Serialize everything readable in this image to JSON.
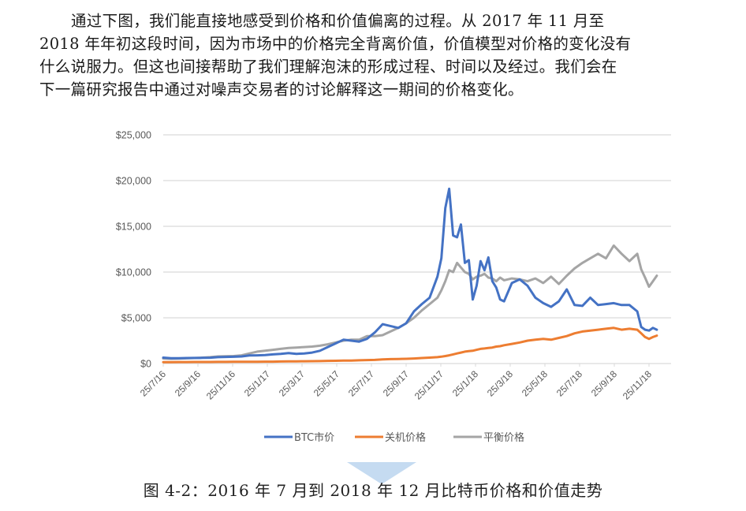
{
  "paragraph": {
    "lines": [
      "通过下图，我们能直接地感受到价格和价值偏离的过程。从 2017 年 11 月至",
      "2018 年年初这段时间，因为市场中的价格完全背离价值，价值模型对价格的变化没有",
      "什么说服力。但这也间接帮助了我们理解泡沫的形成过程、时间以及经过。我们会在",
      "下一篇研究报告中通过对噪声交易者的讨论解释这一期间的价格变化。"
    ]
  },
  "caption": "图 4-2：2016 年 7 月到 2018 年 12 月比特币价格和价值走势",
  "colors": {
    "btc": "#4472C4",
    "shutdown": "#ED7D31",
    "equilibrium": "#A5A5A5",
    "grid": "#D9D9D9",
    "axis_text": "#595959"
  },
  "chart_data": {
    "type": "line",
    "title": "",
    "xlabel": "",
    "ylabel": "",
    "ylim": [
      0,
      25000
    ],
    "yticks": [
      0,
      5000,
      10000,
      15000,
      20000,
      25000
    ],
    "ytick_labels": [
      "$0",
      "$5,000",
      "$10,000",
      "$15,000",
      "$20,000",
      "$25,000"
    ],
    "xtick_labels": [
      "25/7/16",
      "25/9/16",
      "25/11/16",
      "25/1/17",
      "25/3/17",
      "25/5/17",
      "25/7/17",
      "25/9/17",
      "25/11/17",
      "25/1/18",
      "25/3/18",
      "25/5/18",
      "25/7/18",
      "25/9/18",
      "25/11/18"
    ],
    "grid": true,
    "legend_position": "bottom",
    "x": [
      "2016-07-25",
      "2016-08-08",
      "2016-08-22",
      "2016-09-05",
      "2016-09-19",
      "2016-10-03",
      "2016-10-17",
      "2016-10-31",
      "2016-11-14",
      "2016-11-28",
      "2016-12-12",
      "2016-12-26",
      "2017-01-09",
      "2017-01-23",
      "2017-02-06",
      "2017-02-20",
      "2017-03-06",
      "2017-03-20",
      "2017-04-03",
      "2017-04-17",
      "2017-05-01",
      "2017-05-15",
      "2017-05-29",
      "2017-06-12",
      "2017-06-26",
      "2017-07-10",
      "2017-07-24",
      "2017-08-07",
      "2017-08-21",
      "2017-09-04",
      "2017-09-18",
      "2017-10-02",
      "2017-10-16",
      "2017-10-30",
      "2017-11-13",
      "2017-11-27",
      "2017-12-04",
      "2017-12-11",
      "2017-12-18",
      "2017-12-25",
      "2018-01-01",
      "2018-01-08",
      "2018-01-15",
      "2018-01-22",
      "2018-01-29",
      "2018-02-05",
      "2018-02-12",
      "2018-02-19",
      "2018-02-26",
      "2018-03-05",
      "2018-03-12",
      "2018-03-19",
      "2018-03-26",
      "2018-04-09",
      "2018-04-23",
      "2018-05-07",
      "2018-05-21",
      "2018-06-04",
      "2018-06-18",
      "2018-07-02",
      "2018-07-16",
      "2018-07-30",
      "2018-08-13",
      "2018-08-27",
      "2018-09-10",
      "2018-09-24",
      "2018-10-08",
      "2018-10-22",
      "2018-11-05",
      "2018-11-19",
      "2018-11-26",
      "2018-12-03",
      "2018-12-10",
      "2018-12-17",
      "2018-12-24"
    ],
    "series": [
      {
        "name": "BTC市价",
        "values": [
          650,
          590,
          580,
          600,
          610,
          620,
          640,
          700,
          720,
          740,
          780,
          880,
          900,
          920,
          1000,
          1050,
          1150,
          1050,
          1100,
          1200,
          1400,
          1800,
          2200,
          2600,
          2500,
          2400,
          2700,
          3400,
          4300,
          4100,
          3900,
          4400,
          5700,
          6500,
          7200,
          9500,
          11500,
          17000,
          19100,
          14000,
          13800,
          15200,
          11000,
          11300,
          7000,
          8500,
          11200,
          10200,
          11600,
          9000,
          8300,
          7000,
          6800,
          8800,
          9200,
          8500,
          7200,
          6600,
          6200,
          6800,
          8100,
          6400,
          6300,
          7200,
          6400,
          6500,
          6600,
          6400,
          6400,
          5700,
          4000,
          3700,
          3600,
          3900,
          3700
        ]
      },
      {
        "name": "关机价格",
        "values": [
          150,
          150,
          160,
          160,
          170,
          170,
          170,
          180,
          180,
          190,
          190,
          200,
          200,
          210,
          210,
          220,
          230,
          240,
          250,
          260,
          270,
          290,
          300,
          320,
          330,
          350,
          380,
          400,
          450,
          480,
          500,
          520,
          550,
          600,
          650,
          700,
          750,
          820,
          900,
          1000,
          1100,
          1200,
          1300,
          1350,
          1400,
          1500,
          1600,
          1650,
          1700,
          1750,
          1850,
          1900,
          2000,
          2150,
          2300,
          2500,
          2600,
          2700,
          2600,
          2800,
          3000,
          3300,
          3500,
          3600,
          3700,
          3800,
          3900,
          3700,
          3800,
          3700,
          3300,
          2900,
          2700,
          2900,
          3050
        ]
      },
      {
        "name": "平衡价格",
        "values": [
          550,
          520,
          540,
          570,
          600,
          650,
          700,
          780,
          800,
          820,
          900,
          1100,
          1300,
          1400,
          1500,
          1600,
          1700,
          1750,
          1800,
          1850,
          1950,
          2100,
          2300,
          2500,
          2600,
          2600,
          3000,
          3000,
          3100,
          3500,
          3900,
          4400,
          5000,
          5800,
          6500,
          7200,
          8000,
          9000,
          10200,
          10000,
          11000,
          10500,
          10000,
          9800,
          9200,
          9500,
          9600,
          9800,
          9400,
          9300,
          9000,
          9400,
          9100,
          9300,
          9200,
          9000,
          9300,
          8800,
          9500,
          8700,
          9600,
          10400,
          11000,
          11500,
          12000,
          11500,
          12900,
          12000,
          11200,
          12000,
          10300,
          9400,
          8400,
          9000,
          9600
        ]
      }
    ]
  },
  "legend": [
    {
      "label": "BTC市价",
      "key": "btc"
    },
    {
      "label": "关机价格",
      "key": "shutdown"
    },
    {
      "label": "平衡价格",
      "key": "equilibrium"
    }
  ]
}
